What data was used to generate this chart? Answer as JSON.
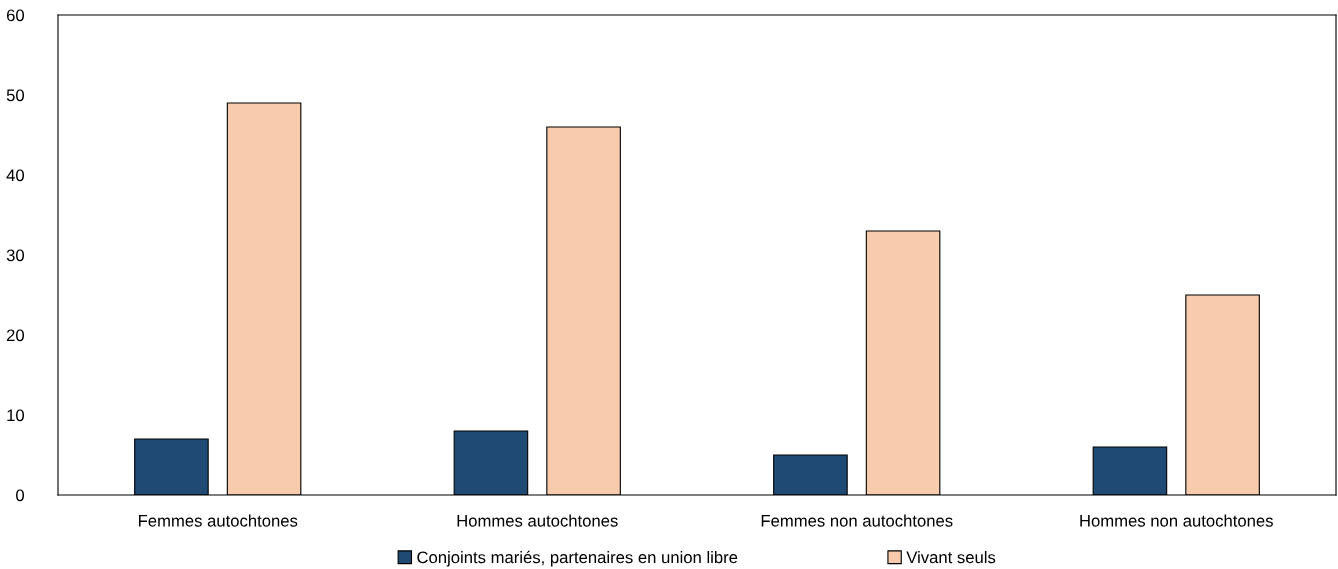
{
  "chart_data": {
    "type": "bar",
    "categories": [
      "Femmes autochtones",
      "Hommes autochtones",
      "Femmes non autochtones",
      "Hommes non autochtones"
    ],
    "series": [
      {
        "name": "Conjoints mariés, partenaires en union libre",
        "color": "#1f4a73",
        "values": [
          7,
          8,
          5,
          6
        ]
      },
      {
        "name": "Vivant seuls",
        "color": "#f7cbac",
        "values": [
          49,
          46,
          33,
          25
        ]
      }
    ],
    "ylim": [
      0,
      60
    ],
    "yticks": [
      0,
      10,
      20,
      30,
      40,
      50,
      60
    ],
    "grid": false,
    "legend": "bottom"
  }
}
